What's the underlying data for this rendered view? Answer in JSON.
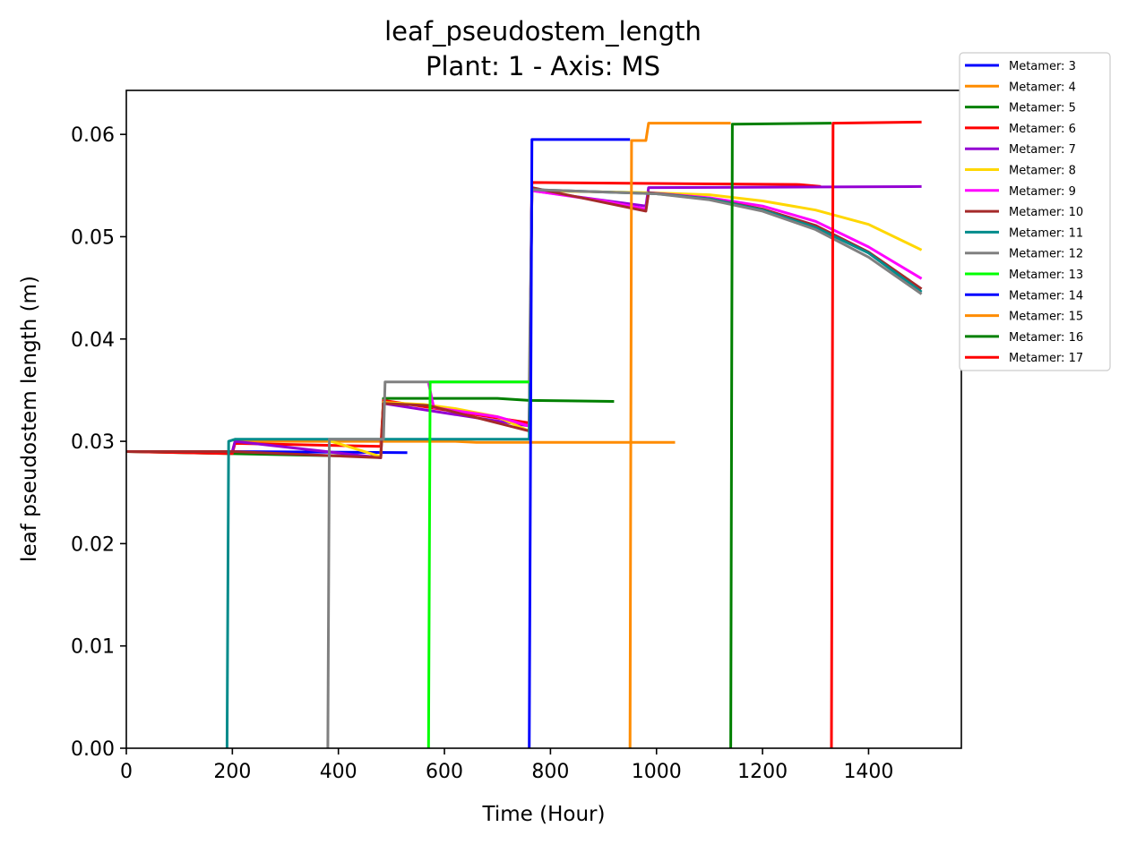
{
  "chart_data": {
    "type": "line",
    "title": "leaf_pseudostem_length",
    "subtitle": "Plant: 1 - Axis: MS",
    "xlabel": "Time (Hour)",
    "ylabel": "leaf pseudostem length (m)",
    "xlim": [
      0,
      1575
    ],
    "ylim": [
      0,
      0.0643
    ],
    "xticks": [
      0,
      200,
      400,
      600,
      800,
      1000,
      1200,
      1400
    ],
    "yticks": [
      0.0,
      0.01,
      0.02,
      0.03,
      0.04,
      0.05,
      0.06
    ],
    "xtick_labels": [
      "0",
      "200",
      "400",
      "600",
      "800",
      "1000",
      "1200",
      "1400"
    ],
    "ytick_labels": [
      "0.00",
      "0.01",
      "0.02",
      "0.03",
      "0.04",
      "0.05",
      "0.06"
    ],
    "grid": false,
    "legend_position": "outside top-right",
    "series": [
      {
        "name": "Metamer: 3",
        "color": "#0000ff",
        "x": [
          0,
          190,
          190,
          530
        ],
        "y": [
          0.029,
          0.029,
          0.029,
          0.0289
        ]
      },
      {
        "name": "Metamer: 4",
        "color": "#ff8c00",
        "x": [
          0,
          200,
          205,
          620,
          660,
          1035
        ],
        "y": [
          0.029,
          0.029,
          0.03,
          0.03,
          0.0299,
          0.0299
        ]
      },
      {
        "name": "Metamer: 5",
        "color": "#008000",
        "x": [
          0,
          190,
          480,
          485,
          700,
          760,
          920
        ],
        "y": [
          0.029,
          0.0288,
          0.0285,
          0.0342,
          0.0342,
          0.034,
          0.0339
        ]
      },
      {
        "name": "Metamer: 6",
        "color": "#ff0000",
        "x": [
          0,
          200,
          205,
          480,
          485,
          760,
          765,
          1000,
          1270,
          1310
        ],
        "y": [
          0.029,
          0.0288,
          0.0298,
          0.0295,
          0.034,
          0.0318,
          0.0553,
          0.0552,
          0.0551,
          0.0549
        ]
      },
      {
        "name": "Metamer: 7",
        "color": "#9400d3",
        "x": [
          0,
          200,
          205,
          480,
          485,
          760,
          765,
          980,
          985,
          1500
        ],
        "y": [
          0.029,
          0.029,
          0.03,
          0.0284,
          0.0337,
          0.0315,
          0.0545,
          0.053,
          0.0548,
          0.0549
        ]
      },
      {
        "name": "Metamer: 8",
        "color": "#ffd700",
        "x": [
          380,
          480,
          485,
          560,
          620,
          700,
          760,
          765,
          980,
          1100,
          1200,
          1300,
          1400,
          1500
        ],
        "y": [
          0.0301,
          0.0285,
          0.0338,
          0.0336,
          0.0332,
          0.0324,
          0.031,
          0.0545,
          0.0543,
          0.0541,
          0.0535,
          0.0526,
          0.0512,
          0.0487
        ]
      },
      {
        "name": "Metamer: 9",
        "color": "#ff00ff",
        "x": [
          570,
          580,
          700,
          760,
          765,
          900,
          980,
          985,
          1100,
          1200,
          1300,
          1400,
          1500
        ],
        "y": [
          0.0357,
          0.0333,
          0.0324,
          0.0315,
          0.0545,
          0.0535,
          0.0527,
          0.0543,
          0.0538,
          0.053,
          0.0515,
          0.049,
          0.0459
        ]
      },
      {
        "name": "Metamer: 10",
        "color": "#a52a2a",
        "x": [
          0,
          200,
          480,
          485,
          570,
          760,
          765,
          980,
          985,
          1100,
          1200,
          1300,
          1400,
          1500
        ],
        "y": [
          0.029,
          0.029,
          0.0284,
          0.0337,
          0.0335,
          0.031,
          0.0548,
          0.0525,
          0.0543,
          0.0537,
          0.0527,
          0.0511,
          0.0485,
          0.0449
        ]
      },
      {
        "name": "Metamer: 11",
        "color": "#008b8b",
        "x": [
          190,
          193,
          205,
          760,
          765,
          1000,
          1100,
          1200,
          1300,
          1400,
          1500
        ],
        "y": [
          0.0,
          0.03,
          0.0302,
          0.0302,
          0.0546,
          0.0542,
          0.0537,
          0.0526,
          0.0509,
          0.0484,
          0.0446
        ]
      },
      {
        "name": "Metamer: 12",
        "color": "#808080",
        "x": [
          380,
          383,
          485,
          488,
          570,
          760,
          765,
          1000,
          1100,
          1200,
          1300,
          1400,
          1500
        ],
        "y": [
          0.0,
          0.0302,
          0.0302,
          0.0358,
          0.0358,
          0.0358,
          0.0546,
          0.0542,
          0.0536,
          0.0525,
          0.0507,
          0.048,
          0.0444
        ]
      },
      {
        "name": "Metamer: 13",
        "color": "#00ff00",
        "x": [
          570,
          573,
          760
        ],
        "y": [
          0.0,
          0.0358,
          0.0358
        ]
      },
      {
        "name": "Metamer: 14",
        "color": "#0000ff",
        "x": [
          760,
          765,
          950
        ],
        "y": [
          0.0,
          0.0595,
          0.0595
        ]
      },
      {
        "name": "Metamer: 15",
        "color": "#ff8c00",
        "x": [
          950,
          953,
          980,
          985,
          1140
        ],
        "y": [
          0.0,
          0.0594,
          0.0594,
          0.0611,
          0.0611
        ]
      },
      {
        "name": "Metamer: 16",
        "color": "#008000",
        "x": [
          1140,
          1143,
          1330
        ],
        "y": [
          0.0,
          0.061,
          0.0611
        ]
      },
      {
        "name": "Metamer: 17",
        "color": "#ff0000",
        "x": [
          1330,
          1333,
          1500
        ],
        "y": [
          0.0,
          0.0611,
          0.0612
        ]
      }
    ]
  }
}
